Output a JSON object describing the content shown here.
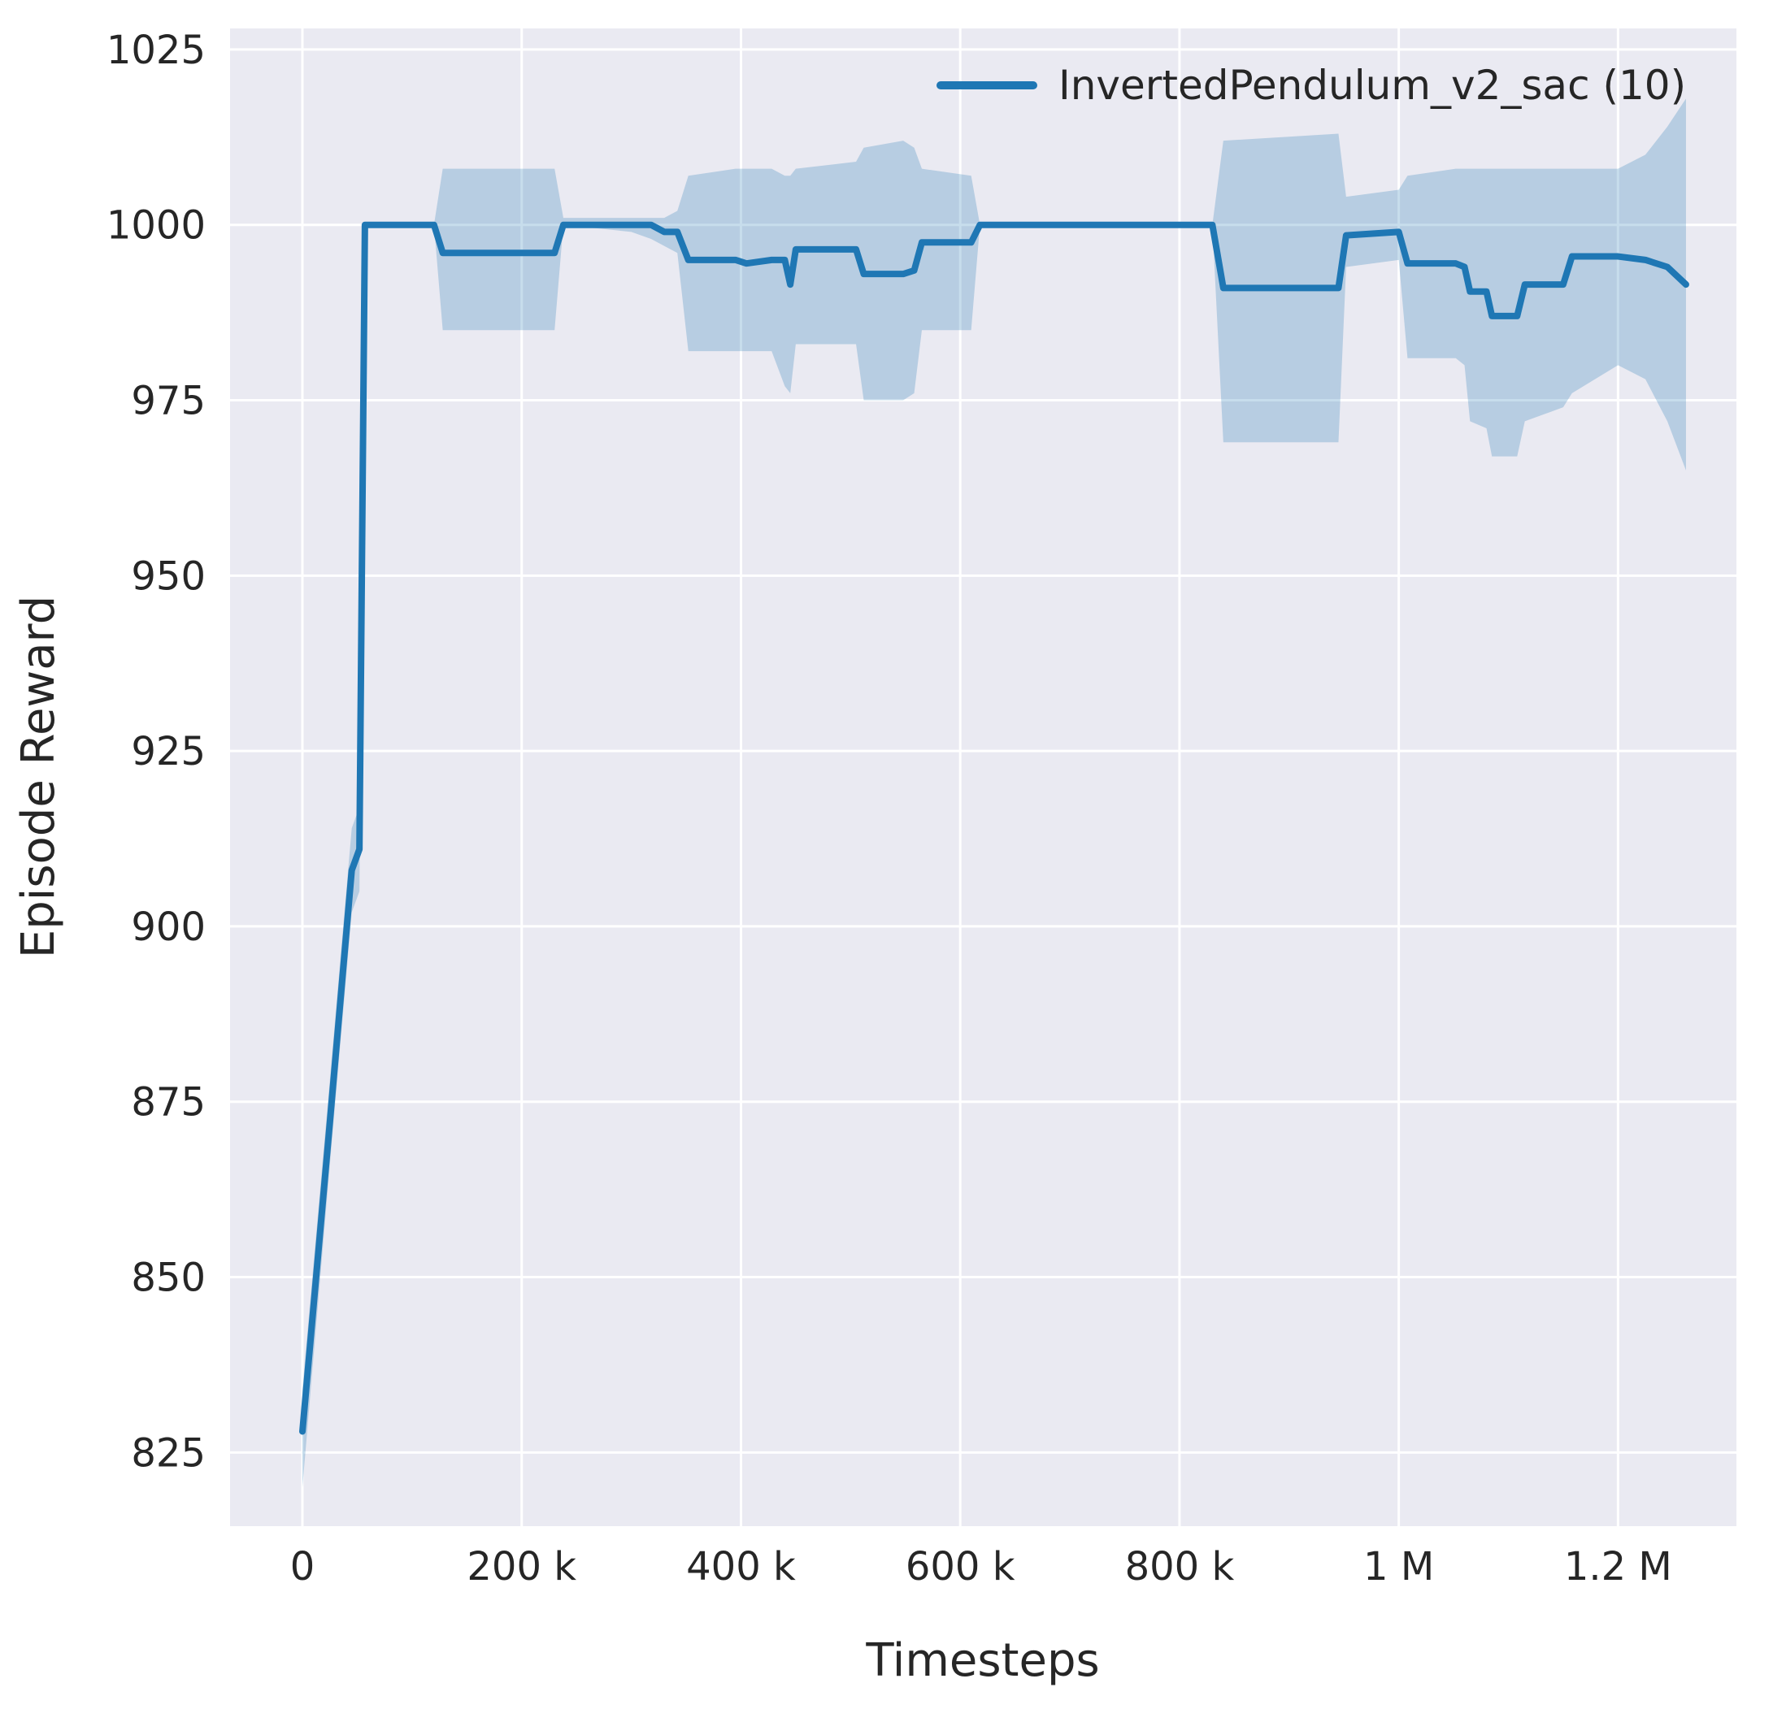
{
  "figure": {
    "background": "#ffffff",
    "plot_background": "#eaeaf2",
    "grid_color": "#ffffff",
    "text_color": "#262626"
  },
  "legend": {
    "entries": [
      {
        "label": "InvertedPendulum_v2_sac (10)",
        "color": "#1f77b4"
      }
    ]
  },
  "chart_data": {
    "type": "line",
    "title": "",
    "xlabel": "Timesteps",
    "ylabel": "Episode Reward",
    "grid": true,
    "legend_position": "upper right",
    "xlim": [
      -66000,
      1308000
    ],
    "ylim": [
      814.5,
      1028
    ],
    "x_ticks": [
      {
        "value": 0,
        "label": "0"
      },
      {
        "value": 200000,
        "label": "200 k"
      },
      {
        "value": 400000,
        "label": "400 k"
      },
      {
        "value": 600000,
        "label": "600 k"
      },
      {
        "value": 800000,
        "label": "800 k"
      },
      {
        "value": 1000000,
        "label": "1 M"
      },
      {
        "value": 1200000,
        "label": "1.2 M"
      }
    ],
    "y_ticks": [
      {
        "value": 825,
        "label": "825"
      },
      {
        "value": 850,
        "label": "850"
      },
      {
        "value": 875,
        "label": "875"
      },
      {
        "value": 900,
        "label": "900"
      },
      {
        "value": 925,
        "label": "925"
      },
      {
        "value": 950,
        "label": "950"
      },
      {
        "value": 975,
        "label": "975"
      },
      {
        "value": 1000,
        "label": "1000"
      },
      {
        "value": 1025,
        "label": "1025"
      }
    ],
    "series": [
      {
        "name": "InvertedPendulum_v2_sac (10)",
        "color": "#1f77b4",
        "band_color": "rgba(31,119,180,0.25)",
        "x": [
          0,
          25000,
          45000,
          52000,
          57000,
          120000,
          128000,
          230000,
          238000,
          300000,
          318000,
          330000,
          342000,
          352000,
          395000,
          405000,
          428000,
          440000,
          445000,
          450000,
          505000,
          512000,
          548000,
          558000,
          565000,
          610000,
          618000,
          830000,
          840000,
          945000,
          952000,
          1000000,
          1008000,
          1052000,
          1060000,
          1065000,
          1080000,
          1085000,
          1108000,
          1115000,
          1150000,
          1158000,
          1200000,
          1225000,
          1245000,
          1262000
        ],
        "mean": [
          828,
          872,
          908,
          911,
          1000,
          1000,
          996,
          996,
          1000,
          1000,
          1000,
          999,
          999,
          995,
          995,
          994.5,
          995,
          995,
          991.5,
          996.5,
          996.5,
          993,
          993,
          993.5,
          997.5,
          997.5,
          1000,
          1000,
          991,
          991,
          998.5,
          999,
          994.5,
          994.5,
          994,
          990.5,
          990.5,
          987,
          987,
          991.5,
          991.5,
          995.5,
          995.5,
          995,
          994,
          991.5
        ],
        "low": [
          820,
          866,
          902,
          905,
          1000,
          1000,
          985,
          985,
          1000,
          999,
          998,
          997,
          996,
          982,
          982,
          982,
          982,
          977,
          976,
          983,
          983,
          975,
          975,
          976,
          985,
          985,
          1000,
          1000,
          969,
          969,
          994,
          995,
          981,
          981,
          980,
          972,
          971,
          967,
          967,
          972,
          974,
          976,
          980,
          978,
          972,
          965
        ],
        "high": [
          834,
          878,
          914,
          917,
          1000,
          1000,
          1008,
          1008,
          1001,
          1001,
          1001,
          1001,
          1002,
          1007,
          1008,
          1008,
          1008,
          1007,
          1007,
          1008,
          1009,
          1011,
          1012,
          1011,
          1008,
          1007,
          1000,
          1000,
          1012,
          1013,
          1004,
          1005,
          1007,
          1008,
          1008,
          1008,
          1008,
          1008,
          1008,
          1008,
          1008,
          1008,
          1008,
          1010,
          1014,
          1018
        ]
      }
    ]
  }
}
